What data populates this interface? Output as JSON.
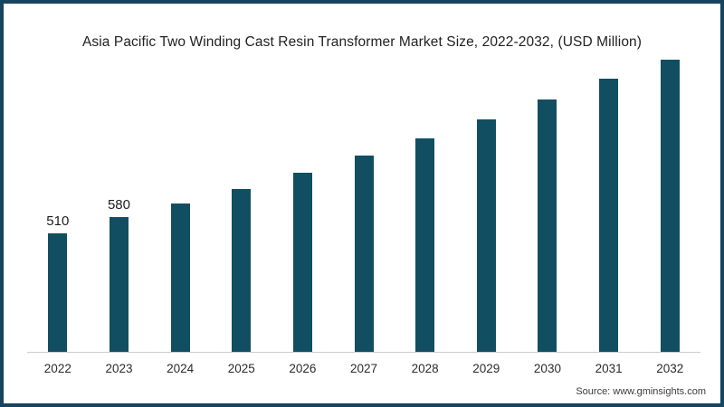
{
  "frame": {
    "border_color": "#17445f",
    "background": "#ffffff"
  },
  "chart_data": {
    "type": "bar",
    "title": "Asia Pacific Two Winding Cast Resin Transformer Market Size, 2022-2032, (USD Million)",
    "categories": [
      "2022",
      "2023",
      "2024",
      "2025",
      "2026",
      "2027",
      "2028",
      "2029",
      "2030",
      "2031",
      "2032"
    ],
    "values": [
      510,
      580,
      640,
      700,
      770,
      845,
      920,
      1000,
      1085,
      1175,
      1270
    ],
    "data_labels": [
      "510",
      "580",
      "",
      "",
      "",
      "",
      "",
      "",
      "",
      "",
      ""
    ],
    "bar_color": "#124e62",
    "axis_line_color": "#cccccc",
    "xlabel": "",
    "ylabel": "",
    "ylim": [
      0,
      1350
    ],
    "grid": false,
    "legend": false
  },
  "source": {
    "label": "Source: www.gminsights.com"
  }
}
